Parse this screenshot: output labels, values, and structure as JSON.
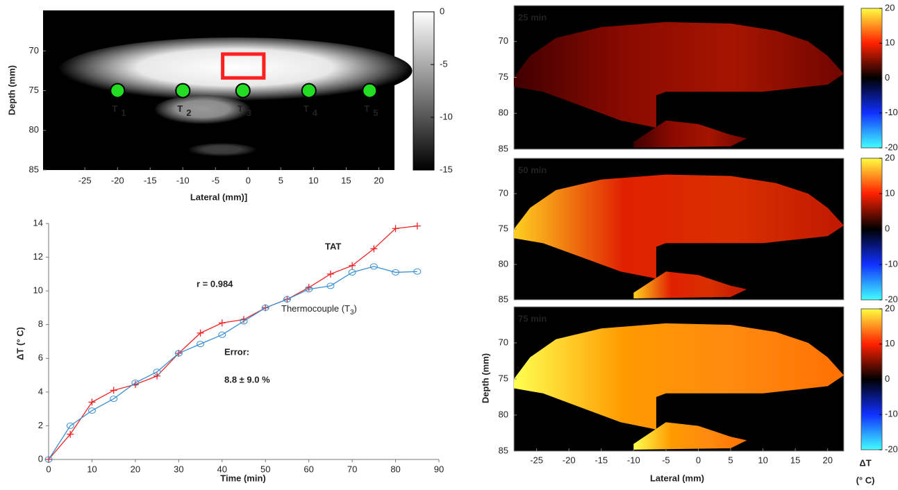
{
  "chart_data": [
    {
      "type": "image",
      "xlabel": "Lateral (mm)]",
      "ylabel": "Depth (mm)",
      "xlim": [
        -31.4,
        22.4
      ],
      "xticks": [
        -25,
        -20,
        -15,
        -10,
        -5,
        0,
        5,
        10,
        15,
        20
      ],
      "ylim": [
        85,
        64.9
      ],
      "yticks": [
        70,
        75,
        80,
        85
      ],
      "colormap": "gray",
      "colorbar": {
        "lim": [
          -15,
          0
        ],
        "ticks": [
          0,
          -5,
          -10,
          -15
        ]
      },
      "roi": {
        "x": [
          -3.9,
          2.4
        ],
        "y": [
          70.4,
          73.4
        ],
        "color": "#ff2020"
      },
      "marker_color": "#22dd22",
      "markers": [
        {
          "label": "T",
          "sub": "1",
          "x": -20,
          "y": 75
        },
        {
          "label": "T",
          "sub": "2",
          "x": -10,
          "y": 75
        },
        {
          "label": "T",
          "sub": "3",
          "x": -0.8,
          "y": 75
        },
        {
          "label": "T",
          "sub": "4",
          "x": 9.3,
          "y": 75
        },
        {
          "label": "T",
          "sub": "5",
          "x": 18.6,
          "y": 75
        }
      ]
    },
    {
      "type": "line",
      "xlabel": "Time (min)",
      "ylabel": "ΔT (° C)",
      "xlim": [
        0,
        90
      ],
      "xticks": [
        0,
        10,
        20,
        30,
        40,
        50,
        60,
        70,
        80,
        90
      ],
      "ylim": [
        0,
        14
      ],
      "yticks": [
        0,
        2,
        4,
        6,
        8,
        10,
        12,
        14
      ],
      "x": [
        0,
        5,
        10,
        15,
        20,
        25,
        30,
        35,
        40,
        45,
        50,
        55,
        60,
        65,
        70,
        75,
        80,
        85
      ],
      "series": [
        {
          "name": "TAT",
          "color": "#ee2222",
          "values": [
            0,
            1.5,
            3.4,
            4.1,
            4.45,
            4.95,
            6.3,
            7.5,
            8.1,
            8.3,
            9.0,
            9.5,
            10.2,
            11.0,
            11.5,
            12.5,
            13.7,
            13.85
          ]
        },
        {
          "name": "Thermocouple (T",
          "name_sub": "3",
          "name_end": ")",
          "color": "#3a8fd0",
          "values": [
            0,
            2.0,
            2.9,
            3.6,
            4.55,
            5.2,
            6.3,
            6.85,
            7.4,
            8.2,
            9.0,
            9.5,
            10.1,
            10.3,
            11.1,
            11.45,
            11.1,
            11.15
          ]
        }
      ],
      "annotations": [
        "r = 0.984",
        "Error:",
        "8.8 ± 9.0 %"
      ]
    },
    {
      "type": "heatmap",
      "xlabel": "Lateral (mm)",
      "ylabel": "Depth (mm)",
      "colorbar_label": "ΔT",
      "colorbar_unit": "(° C)",
      "xlim": [
        -28.5,
        22.5
      ],
      "xticks": [
        -25,
        -20,
        -15,
        -10,
        -5,
        0,
        5,
        10,
        15,
        20
      ],
      "ylim": [
        85,
        65
      ],
      "yticks": [
        70,
        75,
        80,
        85
      ],
      "colormap": "hot-cold",
      "colorbar": {
        "lim": [
          -20,
          20
        ],
        "ticks": [
          20,
          10,
          0,
          -10,
          -20
        ]
      },
      "label_color": "#55ee55",
      "panels": [
        {
          "label": "25 min"
        },
        {
          "label": "50 min"
        },
        {
          "label": "75 min"
        }
      ]
    }
  ]
}
